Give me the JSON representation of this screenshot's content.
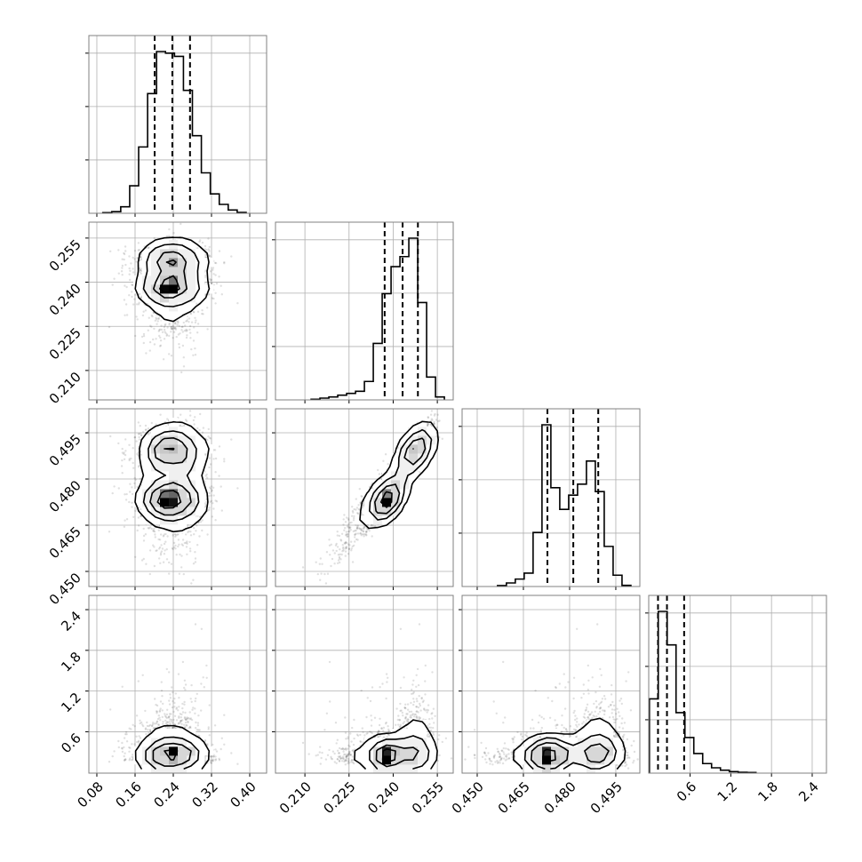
{
  "chart_data": {
    "type": "corner",
    "title": "",
    "grid": true,
    "parameters": [
      {
        "range": [
          0.0633,
          0.4353
        ],
        "ticks": [
          0.08,
          0.16,
          0.24,
          0.32,
          0.4
        ],
        "tick_labels": [
          "0.08",
          "0.16",
          "0.24",
          "0.32",
          "0.40"
        ],
        "histogram": {
          "bin_range": [
            0.0925,
            0.3925
          ],
          "relative_heights": [
            0.004,
            0.01,
            0.04,
            0.17,
            0.41,
            0.74,
            1.0,
            0.99,
            0.97,
            0.76,
            0.48,
            0.25,
            0.12,
            0.055,
            0.02,
            0.005
          ]
        },
        "quantiles": [
          0.201,
          0.238,
          0.275
        ]
      },
      {
        "range": [
          0.2,
          0.2604
        ],
        "ticks": [
          0.21,
          0.225,
          0.24,
          0.255
        ],
        "tick_labels": [
          "0.210",
          "0.225",
          "0.240",
          "0.255"
        ],
        "histogram": {
          "bin_range": [
            0.2121,
            0.2574
          ],
          "relative_heights": [
            0.004,
            0.011,
            0.018,
            0.029,
            0.04,
            0.053,
            0.114,
            0.349,
            0.657,
            0.824,
            0.886,
            1.0,
            0.602,
            0.141,
            0.018
          ]
        },
        "quantiles": [
          0.2371,
          0.2432,
          0.2484
        ]
      },
      {
        "range": [
          0.4451,
          0.5028
        ],
        "ticks": [
          0.45,
          0.465,
          0.48,
          0.495
        ],
        "tick_labels": [
          "0.450",
          "0.465",
          "0.480",
          "0.495"
        ],
        "histogram": {
          "bin_range": [
            0.4566,
            0.4999
          ],
          "relative_heights": [
            0.006,
            0.022,
            0.046,
            0.083,
            0.334,
            1.0,
            0.611,
            0.477,
            0.565,
            0.633,
            0.776,
            0.587,
            0.248,
            0.07,
            0.007
          ]
        },
        "quantiles": [
          0.4728,
          0.4812,
          0.4893
        ]
      },
      {
        "range": [
          -0.01,
          2.61
        ],
        "ticks": [
          0.6,
          1.2,
          1.8,
          2.4
        ],
        "tick_labels": [
          "0.6",
          "1.2",
          "1.8",
          "2.4"
        ],
        "histogram": {
          "bin_range": [
            0.0,
            1.571
          ],
          "relative_heights": [
            0.459,
            1.0,
            0.793,
            0.374,
            0.22,
            0.121,
            0.059,
            0.033,
            0.018,
            0.009,
            0.005,
            0.004
          ]
        },
        "quantiles": [
          0.127,
          0.259,
          0.512
        ]
      }
    ],
    "contour_levels_mass": [
      0.118,
      0.393,
      0.675,
      0.865
    ],
    "colors": {
      "line": "#000000",
      "points": "#000000",
      "grid": "#b0b0b0",
      "frame": "#808080"
    }
  }
}
